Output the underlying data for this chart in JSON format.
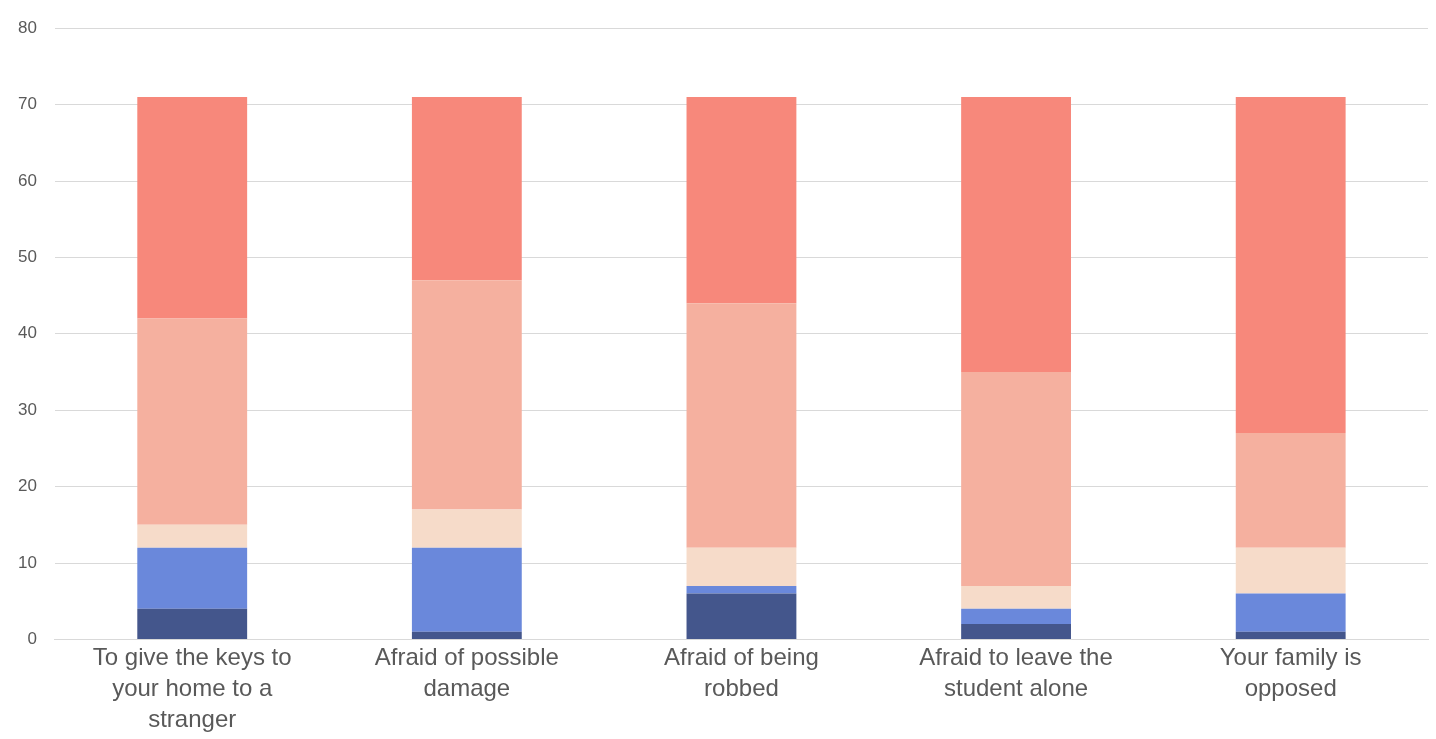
{
  "chart_data": {
    "type": "bar",
    "stacked": true,
    "categories": [
      "To give the keys to your home to a stranger",
      "Afraid of possible damage",
      "Afraid of being robbed",
      "Afraid to leave the student alone",
      "Your family is opposed"
    ],
    "series": [
      {
        "color": "#44568c",
        "values": [
          4,
          1,
          6,
          2,
          1
        ]
      },
      {
        "color": "#6a88db",
        "values": [
          8,
          11,
          1,
          2,
          5
        ]
      },
      {
        "color": "#f6dbc9",
        "values": [
          3,
          5,
          5,
          3,
          6
        ]
      },
      {
        "color": "#f5b09f",
        "values": [
          27,
          30,
          32,
          28,
          15
        ]
      },
      {
        "color": "#f7887b",
        "values": [
          29,
          24,
          27,
          36,
          44
        ]
      }
    ],
    "ylim": [
      0,
      80
    ],
    "yticks": [
      0,
      10,
      20,
      30,
      40,
      50,
      60,
      70,
      80
    ],
    "grid": "y",
    "legend": false
  }
}
